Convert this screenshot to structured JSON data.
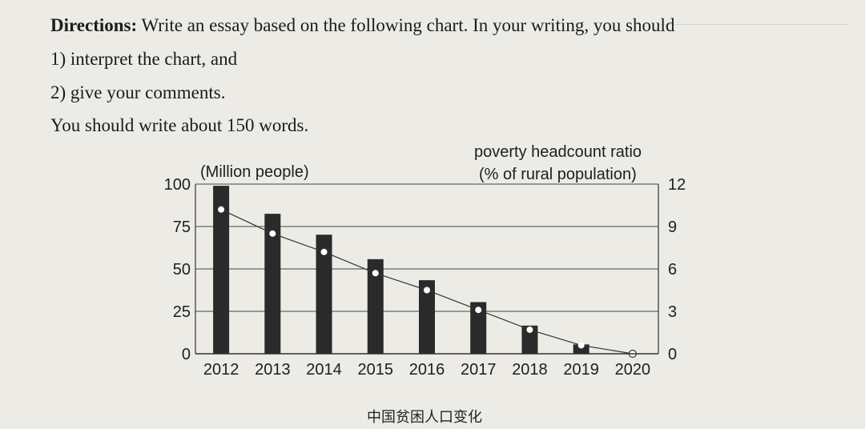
{
  "directions": {
    "label": "Directions:",
    "text": " Write an essay based on the following chart. In your writing, you should",
    "items": [
      "1) interpret the chart, and",
      "2) give your comments."
    ],
    "word_limit": "You should write about 150 words."
  },
  "chart_data": {
    "type": "bar",
    "categories": [
      "2012",
      "2013",
      "2014",
      "2015",
      "2016",
      "2017",
      "2018",
      "2019",
      "2020"
    ],
    "series": [
      {
        "axis": "left",
        "values": [
          98.99,
          82.49,
          70.17,
          55.75,
          43.35,
          30.46,
          16.6,
          5.51,
          0
        ],
        "color": "#2a2a2a"
      },
      {
        "axis": "right",
        "type": "line",
        "values": [
          10.2,
          8.5,
          7.2,
          5.7,
          4.5,
          3.1,
          1.7,
          0.6,
          0
        ],
        "color": "#2a2a2a"
      }
    ],
    "left_axis": {
      "label": "(Million people)",
      "ticks": [
        0,
        25,
        50,
        75,
        100
      ],
      "range": [
        0,
        100
      ]
    },
    "right_axis": {
      "label_line1": "poverty headcount ratio",
      "label_line2": "(% of rural population)",
      "ticks": [
        0,
        3,
        6,
        9,
        12
      ],
      "range": [
        0,
        12
      ]
    },
    "grid": true,
    "caption": "中国贫困人口变化"
  }
}
